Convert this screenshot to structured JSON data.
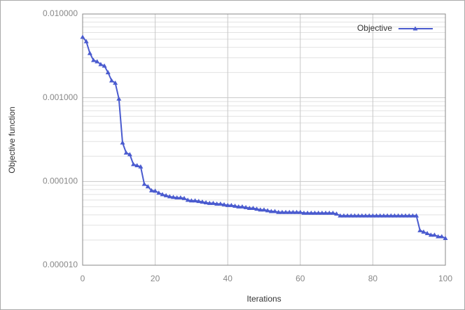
{
  "chart_data": {
    "type": "line",
    "xlabel": "Iterations",
    "ylabel": "Objective function",
    "x": [
      0,
      1,
      2,
      3,
      4,
      5,
      6,
      7,
      8,
      9,
      10,
      11,
      12,
      13,
      14,
      15,
      16,
      17,
      18,
      19,
      20,
      21,
      22,
      23,
      24,
      25,
      26,
      27,
      28,
      29,
      30,
      31,
      32,
      33,
      34,
      35,
      36,
      37,
      38,
      39,
      40,
      41,
      42,
      43,
      44,
      45,
      46,
      47,
      48,
      49,
      50,
      51,
      52,
      53,
      54,
      55,
      56,
      57,
      58,
      59,
      60,
      61,
      62,
      63,
      64,
      65,
      66,
      67,
      68,
      69,
      70,
      71,
      72,
      73,
      74,
      75,
      76,
      77,
      78,
      79,
      80,
      81,
      82,
      83,
      84,
      85,
      86,
      87,
      88,
      89,
      90,
      91,
      92,
      93,
      94,
      95,
      96,
      97,
      98,
      99,
      100
    ],
    "series": [
      {
        "name": "Objective",
        "color": "#4a5bcf",
        "values": [
          0.0053,
          0.0047,
          0.0034,
          0.0028,
          0.0027,
          0.0025,
          0.0024,
          0.002,
          0.0016,
          0.0015,
          0.00097,
          0.00029,
          0.00022,
          0.00021,
          0.00016,
          0.000155,
          0.00015,
          9.3e-05,
          8.7e-05,
          7.8e-05,
          7.7e-05,
          7.3e-05,
          7e-05,
          6.8e-05,
          6.6e-05,
          6.5e-05,
          6.4e-05,
          6.4e-05,
          6.3e-05,
          6e-05,
          5.9e-05,
          5.9e-05,
          5.8e-05,
          5.7e-05,
          5.6e-05,
          5.5e-05,
          5.5e-05,
          5.4e-05,
          5.4e-05,
          5.3e-05,
          5.2e-05,
          5.2e-05,
          5.1e-05,
          5e-05,
          5e-05,
          4.9e-05,
          4.8e-05,
          4.8e-05,
          4.7e-05,
          4.6e-05,
          4.6e-05,
          4.5e-05,
          4.4e-05,
          4.4e-05,
          4.3e-05,
          4.3e-05,
          4.3e-05,
          4.3e-05,
          4.3e-05,
          4.3e-05,
          4.3e-05,
          4.2e-05,
          4.2e-05,
          4.2e-05,
          4.2e-05,
          4.2e-05,
          4.2e-05,
          4.2e-05,
          4.2e-05,
          4.2e-05,
          4.1e-05,
          3.9e-05,
          3.9e-05,
          3.9e-05,
          3.9e-05,
          3.9e-05,
          3.9e-05,
          3.9e-05,
          3.9e-05,
          3.9e-05,
          3.9e-05,
          3.9e-05,
          3.9e-05,
          3.9e-05,
          3.9e-05,
          3.9e-05,
          3.9e-05,
          3.9e-05,
          3.9e-05,
          3.9e-05,
          3.9e-05,
          3.9e-05,
          3.9e-05,
          2.6e-05,
          2.5e-05,
          2.4e-05,
          2.3e-05,
          2.3e-05,
          2.2e-05,
          2.2e-05,
          2.1e-05
        ]
      }
    ],
    "xlim": [
      0,
      100
    ],
    "xticks": [
      0,
      20,
      40,
      60,
      80,
      100
    ],
    "ylim": [
      1e-05,
      0.01
    ],
    "log_y": true,
    "yticks": [
      {
        "value": 1e-05,
        "label": "0.000010"
      },
      {
        "value": 0.0001,
        "label": "0.000100"
      },
      {
        "value": 0.001,
        "label": "0.001000"
      },
      {
        "value": 0.01,
        "label": "0.010000"
      }
    ],
    "grid": true,
    "minor_grid": true,
    "legend": "upper right"
  }
}
